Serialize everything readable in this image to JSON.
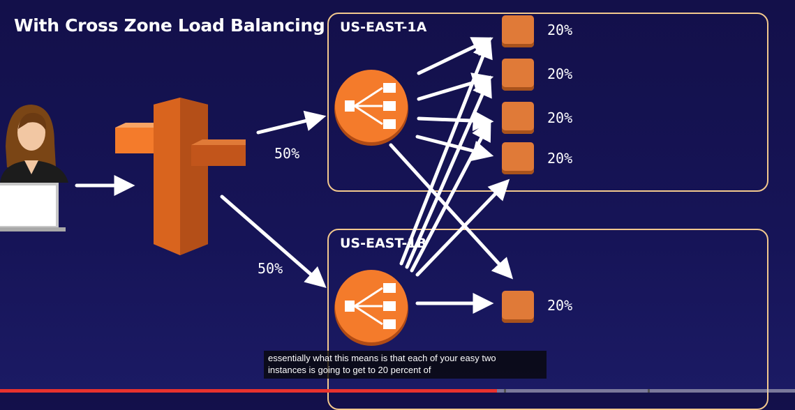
{
  "title": "With Cross Zone Load Balancing",
  "zones": [
    {
      "label": "US-EAST-1A"
    },
    {
      "label": "US-EAST-1B"
    }
  ],
  "lb_split": [
    "50%",
    "50%"
  ],
  "instances": [
    {
      "zone": "US-EAST-1A",
      "share": "20%"
    },
    {
      "zone": "US-EAST-1A",
      "share": "20%"
    },
    {
      "zone": "US-EAST-1A",
      "share": "20%"
    },
    {
      "zone": "US-EAST-1A",
      "share": "20%"
    },
    {
      "zone": "US-EAST-1B",
      "share": "20%"
    }
  ],
  "caption": {
    "line1": "essentially what this means is that each of your easy two",
    "line2": "instances is going to get to 20 percent of"
  },
  "player": {
    "progress": 0.625
  },
  "colors": {
    "background": "#14124f",
    "zone_border": "#f3c98e",
    "aws_orange": "#f47b2b",
    "instance": "#e07a38",
    "arrow": "#ffffff",
    "progress": "#e8322e"
  }
}
